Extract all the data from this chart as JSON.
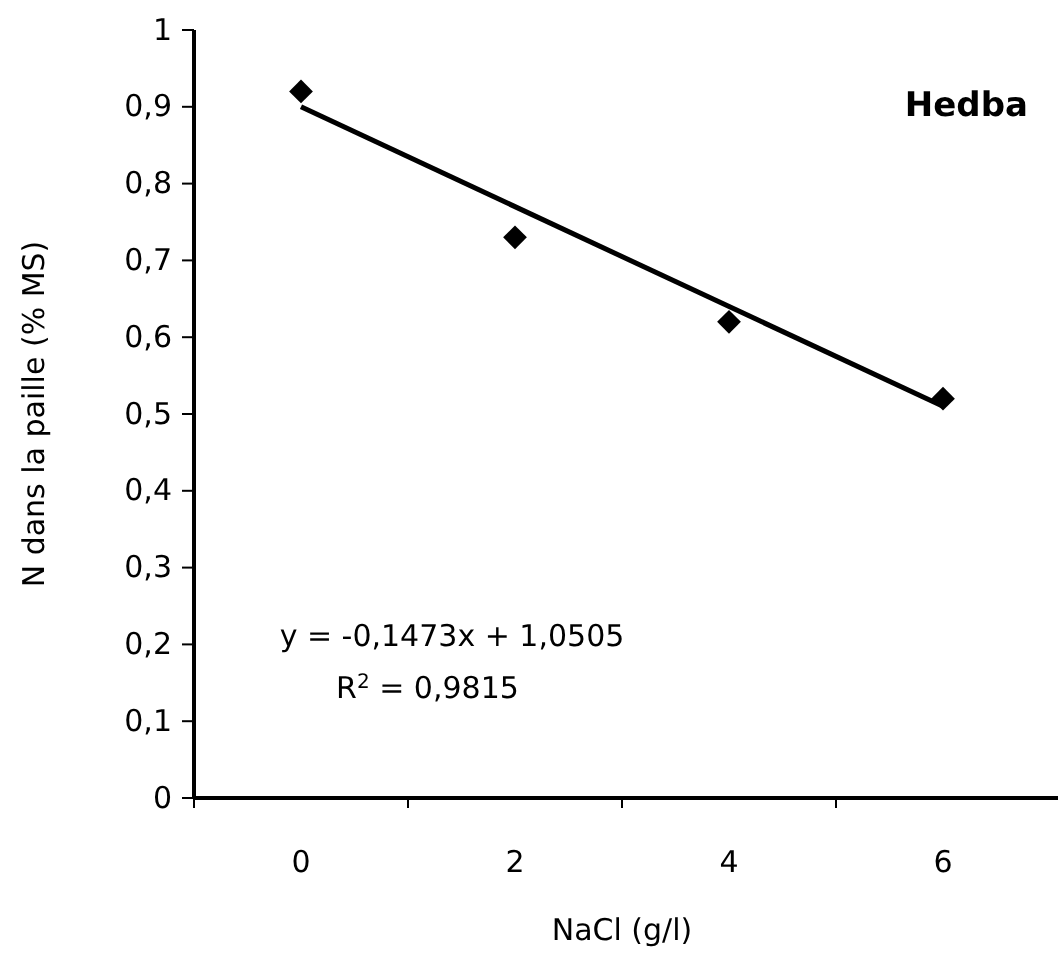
{
  "chart_data": {
    "type": "scatter",
    "title": "Hedba",
    "xlabel": "NaCl (g/l)",
    "ylabel": "N dans la paille (% MS)",
    "categories": [
      "0",
      "2",
      "4",
      "6"
    ],
    "series": [
      {
        "color": "#000000",
        "marker": "diamond",
        "values": [
          0.92,
          0.73,
          0.62,
          0.52
        ]
      },
      {
        "type": "line",
        "color": "#000000",
        "marker": "none",
        "line_style": "solid",
        "x": [
          "0",
          "6"
        ],
        "values": [
          0.9,
          0.51
        ]
      }
    ],
    "ylim": [
      0,
      1
    ],
    "yticks": [
      0,
      {
        "value": 0.1,
        "label": "0,1"
      },
      {
        "value": 0.2,
        "label": "0,2"
      },
      {
        "value": 0.3,
        "label": "0,3"
      },
      {
        "value": 0.4,
        "label": "0,4"
      },
      {
        "value": 0.5,
        "label": "0,5"
      },
      {
        "value": 0.6,
        "label": "0,6"
      },
      {
        "value": 0.7,
        "label": "0,7"
      },
      {
        "value": 0.8,
        "label": "0,8"
      },
      {
        "value": 0.9,
        "label": "0,9"
      },
      1
    ],
    "annotations": [
      "y = -0,1473x + 1,0505",
      "R$^{2}$ = 0,9815"
    ],
    "grid": false
  }
}
